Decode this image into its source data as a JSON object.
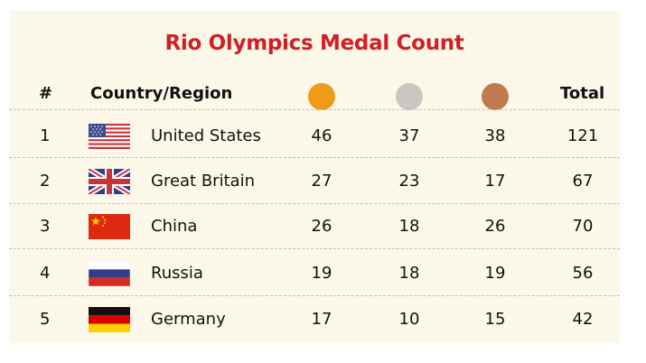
{
  "title": "Rio Olympics Medal Count",
  "headers": {
    "rank": "#",
    "country": "Country/Region",
    "total": "Total",
    "gold_icon": "gold-medal-icon",
    "silver_icon": "silver-medal-icon",
    "bronze_icon": "bronze-medal-icon"
  },
  "colors": {
    "title": "#d11f25",
    "gold": "#ee9b1a",
    "silver": "#c8c7c2",
    "bronze": "#c17a50",
    "background": "#fcf8e9"
  },
  "rows": [
    {
      "rank": "1",
      "country": "United States",
      "flag": "usa-flag-icon",
      "gold": "46",
      "silver": "37",
      "bronze": "38",
      "total": "121"
    },
    {
      "rank": "2",
      "country": "Great Britain",
      "flag": "uk-flag-icon",
      "gold": "27",
      "silver": "23",
      "bronze": "17",
      "total": "67"
    },
    {
      "rank": "3",
      "country": "China",
      "flag": "china-flag-icon",
      "gold": "26",
      "silver": "18",
      "bronze": "26",
      "total": "70"
    },
    {
      "rank": "4",
      "country": "Russia",
      "flag": "russia-flag-icon",
      "gold": "19",
      "silver": "18",
      "bronze": "19",
      "total": "56"
    },
    {
      "rank": "5",
      "country": "Germany",
      "flag": "germany-flag-icon",
      "gold": "17",
      "silver": "10",
      "bronze": "15",
      "total": "42"
    }
  ]
}
